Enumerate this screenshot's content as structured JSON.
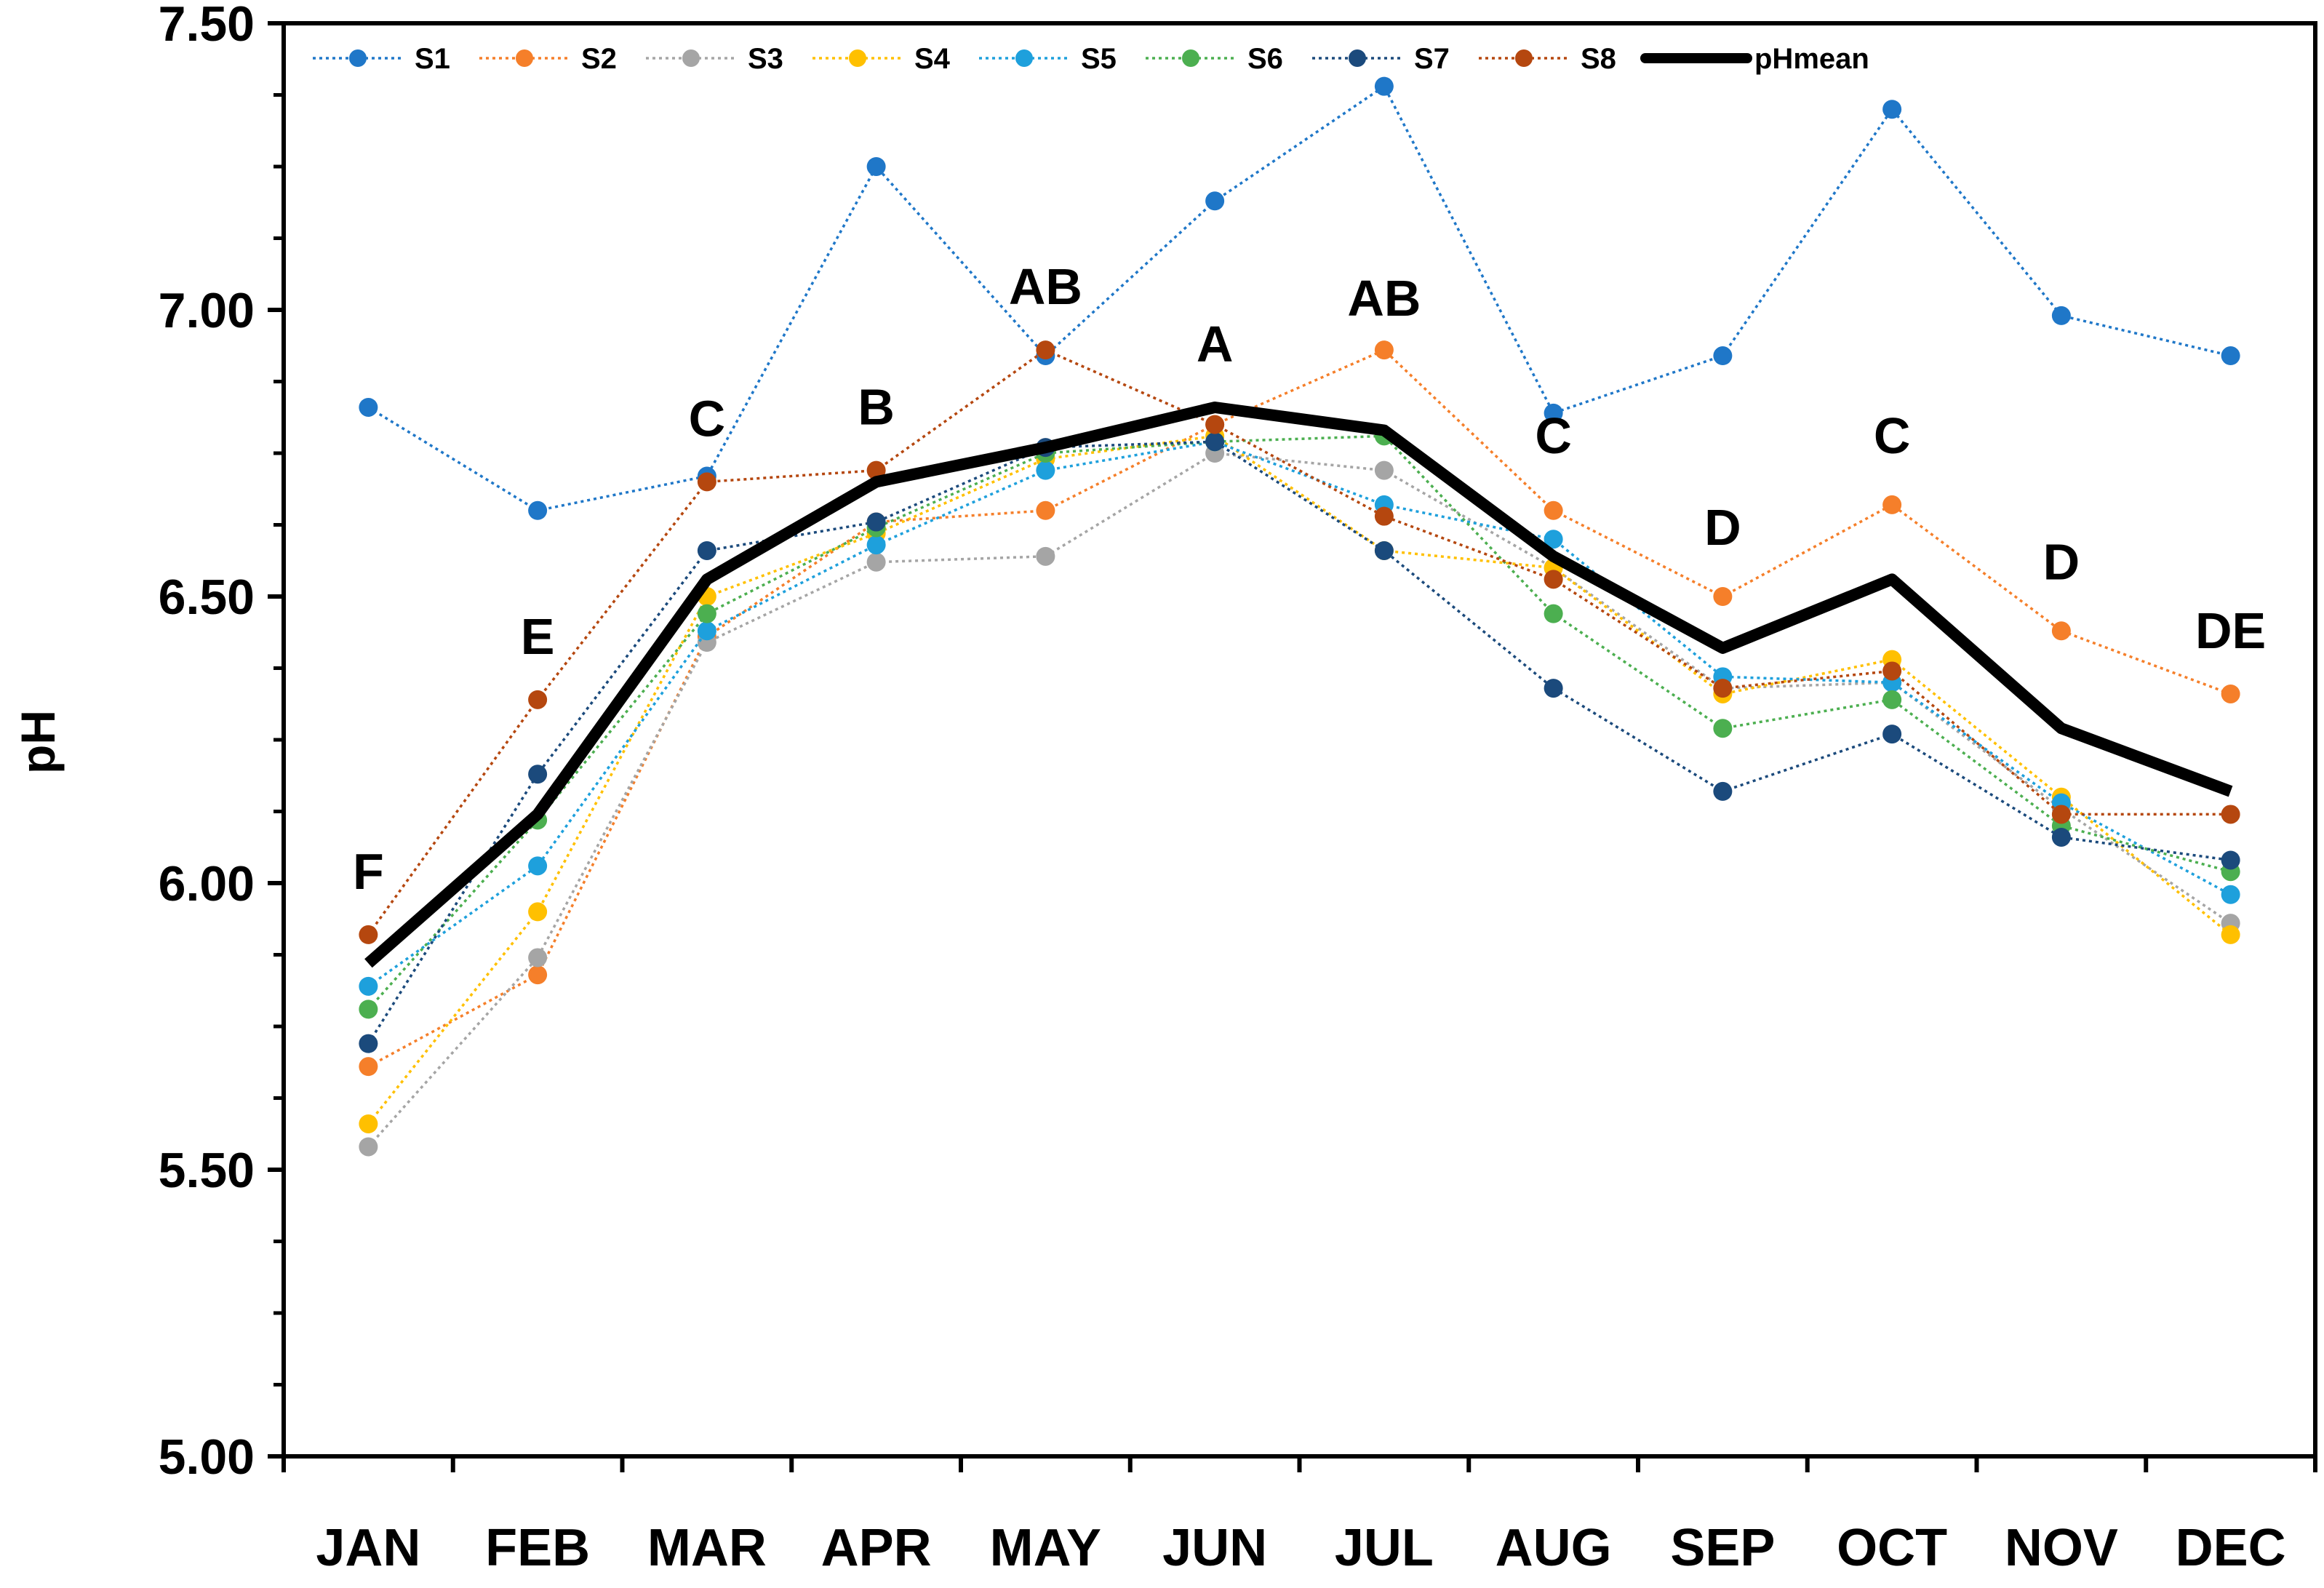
{
  "chart_data": {
    "type": "line",
    "title": "",
    "xlabel": "",
    "ylabel": "pH",
    "ylim": [
      5.0,
      7.5
    ],
    "y_ticks": [
      "5.00",
      "5.50",
      "6.00",
      "6.50",
      "7.00",
      "7.50"
    ],
    "y_tick_values": [
      5.0,
      5.5,
      6.0,
      6.5,
      7.0,
      7.5
    ],
    "y_minor_step": 0.125,
    "categories": [
      "JAN",
      "FEB",
      "MAR",
      "APR",
      "MAY",
      "JUN",
      "JUL",
      "AUG",
      "SEP",
      "OCT",
      "NOV",
      "DEC"
    ],
    "grid": false,
    "legend_position": "top",
    "series": [
      {
        "name": "S1",
        "color": "#1f77c8",
        "style": "dotted-marker",
        "values": [
          6.83,
          6.65,
          6.71,
          7.25,
          6.92,
          7.19,
          7.39,
          6.82,
          6.92,
          7.35,
          6.99,
          6.92
        ]
      },
      {
        "name": "S2",
        "color": "#f57f2a",
        "style": "dotted-marker",
        "values": [
          5.68,
          5.84,
          6.43,
          6.63,
          6.65,
          6.8,
          6.93,
          6.65,
          6.5,
          6.66,
          6.44,
          6.33
        ]
      },
      {
        "name": "S3",
        "color": "#a5a5a5",
        "style": "dotted-marker",
        "values": [
          5.54,
          5.87,
          6.42,
          6.56,
          6.57,
          6.75,
          6.72,
          6.55,
          6.34,
          6.35,
          6.13,
          5.93
        ]
      },
      {
        "name": "S4",
        "color": "#ffc000",
        "style": "dotted-marker",
        "values": [
          5.58,
          5.95,
          6.5,
          6.61,
          6.74,
          6.78,
          6.58,
          6.55,
          6.33,
          6.39,
          6.15,
          5.91
        ]
      },
      {
        "name": "S5",
        "color": "#1ea0dc",
        "style": "dotted-marker",
        "values": [
          5.82,
          6.03,
          6.44,
          6.59,
          6.72,
          6.77,
          6.66,
          6.6,
          6.36,
          6.35,
          6.14,
          5.98
        ]
      },
      {
        "name": "S6",
        "color": "#4caf50",
        "style": "dotted-marker",
        "values": [
          5.78,
          6.11,
          6.47,
          6.62,
          6.75,
          6.77,
          6.78,
          6.47,
          6.27,
          6.32,
          6.1,
          6.02
        ]
      },
      {
        "name": "S7",
        "color": "#1b4a7c",
        "style": "dotted-marker",
        "values": [
          5.72,
          6.19,
          6.58,
          6.63,
          6.76,
          6.77,
          6.58,
          6.34,
          6.16,
          6.26,
          6.08,
          6.04
        ]
      },
      {
        "name": "S8",
        "color": "#b5470f",
        "style": "dotted-marker",
        "values": [
          5.91,
          6.32,
          6.7,
          6.72,
          6.93,
          6.8,
          6.64,
          6.53,
          6.34,
          6.37,
          6.12,
          6.12
        ]
      },
      {
        "name": "pHmean",
        "color": "#000000",
        "style": "thick-line",
        "values": [
          5.86,
          6.12,
          6.53,
          6.7,
          6.76,
          6.83,
          6.79,
          6.57,
          6.41,
          6.53,
          6.27,
          6.16
        ]
      }
    ],
    "annotations": [
      "F",
      "E",
      "C",
      "B",
      "AB",
      "A",
      "AB",
      "C",
      "D",
      "C",
      "D",
      "DE"
    ],
    "annotation_values": [
      5.99,
      6.4,
      6.78,
      6.8,
      7.01,
      6.91,
      6.99,
      6.75,
      6.59,
      6.75,
      6.53,
      6.41
    ]
  }
}
